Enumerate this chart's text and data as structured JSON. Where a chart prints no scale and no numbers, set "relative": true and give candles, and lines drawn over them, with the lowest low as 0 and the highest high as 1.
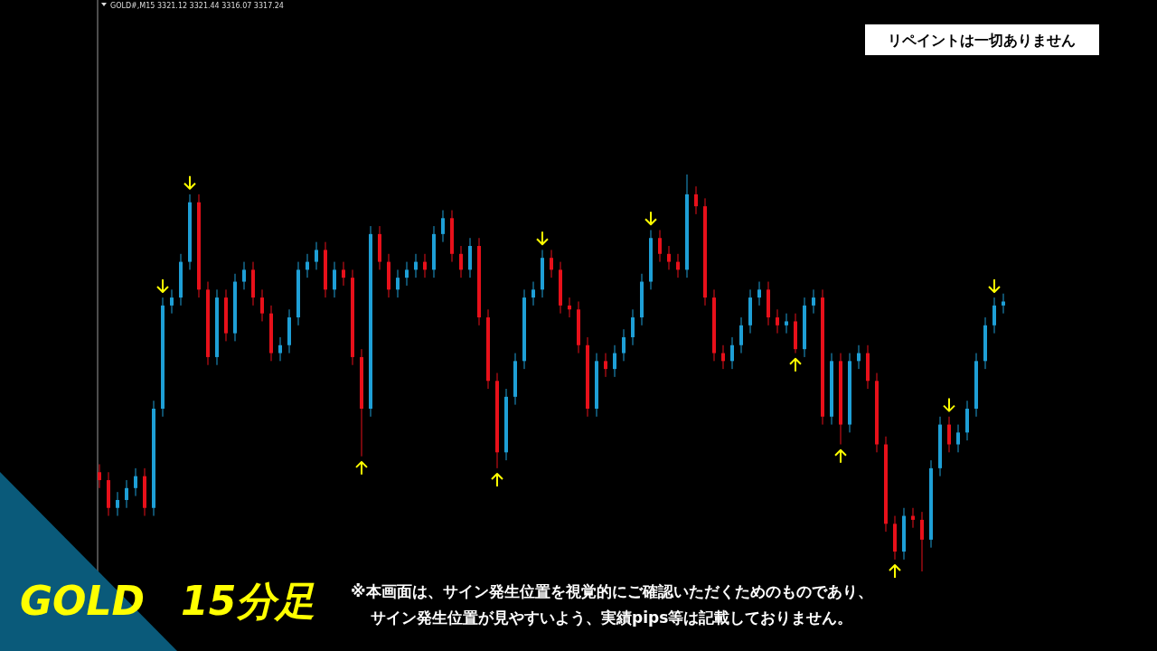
{
  "chart_data": {
    "type": "candlestick",
    "relative": true,
    "title": "GOLD 15分足",
    "annotations": [
      "GOLD#,M15  3321.12 3321.44 3316.07 3317.24",
      "リペイントは一切ありません",
      "※本画面は、サイン発生位置を視覚的にご確認いただくためのものであり、",
      "サイン発生位置が見やすいよう、実績pips等は記載しておりません。"
    ],
    "colors": [
      "#e8101a",
      "#e8101a",
      "#1e9fd6",
      "#1e9fd6",
      "#1e9fd6",
      "#e8101a",
      "#1e9fd6",
      "#1e9fd6",
      "#1e9fd6",
      "#1e9fd6",
      "#1e9fd6",
      "#e8101a",
      "#e8101a",
      "#1e9fd6",
      "#e8101a",
      "#1e9fd6",
      "#1e9fd6",
      "#e8101a",
      "#e8101a",
      "#e8101a",
      "#1e9fd6",
      "#1e9fd6",
      "#1e9fd6",
      "#1e9fd6",
      "#1e9fd6",
      "#e8101a",
      "#1e9fd6",
      "#e8101a",
      "#e8101a",
      "#e8101a",
      "#1e9fd6",
      "#e8101a",
      "#e8101a",
      "#1e9fd6",
      "#1e9fd6",
      "#1e9fd6",
      "#e8101a",
      "#1e9fd6",
      "#1e9fd6",
      "#e8101a",
      "#e8101a",
      "#1e9fd6",
      "#e8101a",
      "#e8101a",
      "#e8101a",
      "#1e9fd6",
      "#1e9fd6",
      "#1e9fd6",
      "#1e9fd6",
      "#1e9fd6",
      "#e8101a",
      "#e8101a",
      "#e8101a",
      "#e8101a",
      "#e8101a",
      "#1e9fd6",
      "#e8101a",
      "#1e9fd6",
      "#1e9fd6",
      "#1e9fd6",
      "#1e9fd6",
      "#1e9fd6",
      "#e8101a",
      "#e8101a",
      "#e8101a",
      "#1e9fd6",
      "#e8101a",
      "#e8101a",
      "#e8101a",
      "#e8101a",
      "#1e9fd6",
      "#1e9fd6",
      "#1e9fd6",
      "#1e9fd6",
      "#e8101a",
      "#e8101a",
      "#1e9fd6",
      "#e8101a",
      "#1e9fd6",
      "#1e9fd6",
      "#e8101a",
      "#1e9fd6",
      "#e8101a",
      "#1e9fd6",
      "#1e9fd6",
      "#e8101a",
      "#e8101a",
      "#e8101a",
      "#e8101a",
      "#1e9fd6",
      "#e8101a",
      "#e8101a",
      "#1e9fd6",
      "#1e9fd6",
      "#e8101a",
      "#1e9fd6",
      "#1e9fd6",
      "#1e9fd6",
      "#1e9fd6",
      "#1e9fd6",
      "#1e9fd6"
    ],
    "categories": [
      null,
      null,
      null,
      null,
      null,
      null,
      null,
      null,
      null,
      null,
      null,
      null,
      null,
      null,
      null,
      null,
      null,
      null,
      null,
      null,
      null,
      null,
      null,
      null,
      null,
      null,
      null,
      null,
      null,
      null,
      null,
      null,
      null,
      null,
      null,
      null,
      null,
      null,
      null,
      null,
      null,
      null,
      null,
      null,
      null,
      null,
      null,
      null,
      null,
      null,
      null,
      null,
      null,
      null,
      null,
      null,
      null,
      null,
      null,
      null,
      null,
      null,
      null,
      null,
      null,
      null,
      null,
      null,
      null,
      null,
      null,
      null,
      null,
      null,
      null,
      null,
      null,
      null,
      null,
      null,
      null,
      null,
      null,
      null,
      null,
      null,
      null,
      null,
      null,
      null,
      null,
      null,
      null,
      null,
      null,
      null,
      null,
      null,
      null,
      null,
      null
    ],
    "ohlc": [
      [
        0.25,
        0.27,
        0.21,
        0.23
      ],
      [
        0.23,
        0.25,
        0.14,
        0.16
      ],
      [
        0.16,
        0.2,
        0.14,
        0.18
      ],
      [
        0.18,
        0.23,
        0.16,
        0.21
      ],
      [
        0.21,
        0.26,
        0.19,
        0.24
      ],
      [
        0.24,
        0.26,
        0.14,
        0.16
      ],
      [
        0.16,
        0.43,
        0.14,
        0.41
      ],
      [
        0.41,
        0.69,
        0.39,
        0.67
      ],
      [
        0.67,
        0.71,
        0.65,
        0.69
      ],
      [
        0.69,
        0.8,
        0.67,
        0.78
      ],
      [
        0.78,
        0.95,
        0.76,
        0.93
      ],
      [
        0.93,
        0.95,
        0.69,
        0.71
      ],
      [
        0.71,
        0.73,
        0.52,
        0.54
      ],
      [
        0.54,
        0.71,
        0.52,
        0.69
      ],
      [
        0.69,
        0.71,
        0.58,
        0.6
      ],
      [
        0.6,
        0.75,
        0.58,
        0.73
      ],
      [
        0.73,
        0.78,
        0.71,
        0.76
      ],
      [
        0.76,
        0.78,
        0.67,
        0.69
      ],
      [
        0.69,
        0.71,
        0.63,
        0.65
      ],
      [
        0.65,
        0.67,
        0.53,
        0.55
      ],
      [
        0.55,
        0.59,
        0.53,
        0.57
      ],
      [
        0.57,
        0.66,
        0.55,
        0.64
      ],
      [
        0.64,
        0.78,
        0.62,
        0.76
      ],
      [
        0.76,
        0.8,
        0.74,
        0.78
      ],
      [
        0.78,
        0.83,
        0.76,
        0.81
      ],
      [
        0.81,
        0.83,
        0.69,
        0.71
      ],
      [
        0.71,
        0.78,
        0.69,
        0.76
      ],
      [
        0.76,
        0.78,
        0.72,
        0.74
      ],
      [
        0.74,
        0.76,
        0.52,
        0.54
      ],
      [
        0.54,
        0.56,
        0.29,
        0.41
      ],
      [
        0.41,
        0.87,
        0.39,
        0.85
      ],
      [
        0.85,
        0.87,
        0.76,
        0.78
      ],
      [
        0.78,
        0.8,
        0.69,
        0.71
      ],
      [
        0.71,
        0.76,
        0.69,
        0.74
      ],
      [
        0.74,
        0.78,
        0.72,
        0.76
      ],
      [
        0.76,
        0.8,
        0.74,
        0.78
      ],
      [
        0.78,
        0.8,
        0.74,
        0.76
      ],
      [
        0.76,
        0.87,
        0.74,
        0.85
      ],
      [
        0.85,
        0.91,
        0.83,
        0.89
      ],
      [
        0.89,
        0.91,
        0.78,
        0.8
      ],
      [
        0.8,
        0.82,
        0.74,
        0.76
      ],
      [
        0.76,
        0.84,
        0.74,
        0.82
      ],
      [
        0.82,
        0.84,
        0.62,
        0.64
      ],
      [
        0.64,
        0.66,
        0.46,
        0.48
      ],
      [
        0.48,
        0.5,
        0.26,
        0.3
      ],
      [
        0.3,
        0.46,
        0.28,
        0.44
      ],
      [
        0.44,
        0.55,
        0.42,
        0.53
      ],
      [
        0.53,
        0.71,
        0.51,
        0.69
      ],
      [
        0.69,
        0.73,
        0.67,
        0.71
      ],
      [
        0.71,
        0.81,
        0.69,
        0.79
      ],
      [
        0.79,
        0.81,
        0.74,
        0.76
      ],
      [
        0.76,
        0.78,
        0.65,
        0.67
      ],
      [
        0.67,
        0.69,
        0.64,
        0.66
      ],
      [
        0.66,
        0.68,
        0.55,
        0.57
      ],
      [
        0.57,
        0.59,
        0.39,
        0.41
      ],
      [
        0.41,
        0.55,
        0.39,
        0.53
      ],
      [
        0.53,
        0.55,
        0.49,
        0.51
      ],
      [
        0.51,
        0.57,
        0.49,
        0.55
      ],
      [
        0.55,
        0.61,
        0.53,
        0.59
      ],
      [
        0.59,
        0.66,
        0.57,
        0.64
      ],
      [
        0.64,
        0.75,
        0.62,
        0.73
      ],
      [
        0.73,
        0.86,
        0.71,
        0.84
      ],
      [
        0.84,
        0.86,
        0.78,
        0.8
      ],
      [
        0.8,
        0.82,
        0.76,
        0.78
      ],
      [
        0.78,
        0.8,
        0.74,
        0.76
      ],
      [
        0.76,
        1.0,
        0.74,
        0.95
      ],
      [
        0.95,
        0.97,
        0.9,
        0.92
      ],
      [
        0.92,
        0.94,
        0.67,
        0.69
      ],
      [
        0.69,
        0.71,
        0.53,
        0.55
      ],
      [
        0.55,
        0.57,
        0.51,
        0.53
      ],
      [
        0.53,
        0.59,
        0.51,
        0.57
      ],
      [
        0.57,
        0.64,
        0.55,
        0.62
      ],
      [
        0.62,
        0.71,
        0.6,
        0.69
      ],
      [
        0.69,
        0.73,
        0.67,
        0.71
      ],
      [
        0.71,
        0.73,
        0.62,
        0.64
      ],
      [
        0.64,
        0.66,
        0.6,
        0.62
      ],
      [
        0.62,
        0.65,
        0.6,
        0.63
      ],
      [
        0.63,
        0.65,
        0.55,
        0.56
      ],
      [
        0.56,
        0.69,
        0.54,
        0.67
      ],
      [
        0.67,
        0.71,
        0.65,
        0.69
      ],
      [
        0.69,
        0.71,
        0.37,
        0.39
      ],
      [
        0.39,
        0.55,
        0.37,
        0.53
      ],
      [
        0.53,
        0.55,
        0.32,
        0.37
      ],
      [
        0.37,
        0.55,
        0.35,
        0.53
      ],
      [
        0.53,
        0.57,
        0.51,
        0.55
      ],
      [
        0.55,
        0.57,
        0.46,
        0.48
      ],
      [
        0.48,
        0.5,
        0.3,
        0.32
      ],
      [
        0.32,
        0.34,
        0.1,
        0.12
      ],
      [
        0.12,
        0.14,
        0.03,
        0.05
      ],
      [
        0.05,
        0.16,
        0.03,
        0.14
      ],
      [
        0.14,
        0.16,
        0.11,
        0.13
      ],
      [
        0.13,
        0.15,
        0.0,
        0.08
      ],
      [
        0.08,
        0.28,
        0.06,
        0.26
      ],
      [
        0.26,
        0.39,
        0.24,
        0.37
      ],
      [
        0.37,
        0.39,
        0.3,
        0.32
      ],
      [
        0.32,
        0.37,
        0.3,
        0.35
      ],
      [
        0.35,
        0.43,
        0.33,
        0.41
      ],
      [
        0.41,
        0.55,
        0.39,
        0.53
      ],
      [
        0.53,
        0.64,
        0.51,
        0.62
      ],
      [
        0.62,
        0.69,
        0.6,
        0.67
      ],
      [
        0.67,
        0.7,
        0.65,
        0.68
      ]
    ],
    "series": [
      {
        "type": "scatter",
        "color": "#ffff00",
        "values": [
          null,
          null,
          null,
          null,
          null,
          null,
          null,
          0.72,
          null,
          null,
          0.98,
          null,
          null,
          null,
          null,
          null,
          null,
          null,
          null,
          null,
          null,
          null,
          null,
          null,
          null,
          null,
          null,
          null,
          null,
          null,
          null,
          null,
          null,
          null,
          null,
          null,
          null,
          null,
          null,
          null,
          null,
          null,
          null,
          null,
          null,
          null,
          null,
          null,
          null,
          0.84,
          null,
          null,
          null,
          null,
          null,
          null,
          null,
          null,
          null,
          null,
          null,
          0.89,
          null,
          null,
          null,
          null,
          null,
          null,
          null,
          null,
          null,
          null,
          null,
          null,
          null,
          null,
          null,
          null,
          null,
          null,
          null,
          null,
          null,
          null,
          null,
          null,
          null,
          null,
          null,
          null,
          null,
          null,
          null,
          null,
          0.42,
          null,
          null,
          null,
          null,
          0.72,
          null
        ]
      },
      {
        "type": "scatter",
        "color": "#ffff00",
        "values": [
          null,
          null,
          null,
          null,
          null,
          null,
          null,
          null,
          null,
          null,
          null,
          null,
          null,
          null,
          null,
          null,
          null,
          null,
          null,
          null,
          null,
          null,
          null,
          null,
          null,
          null,
          null,
          null,
          null,
          0.26,
          null,
          null,
          null,
          null,
          null,
          null,
          null,
          null,
          null,
          null,
          null,
          null,
          null,
          null,
          0.23,
          null,
          null,
          null,
          null,
          null,
          null,
          null,
          null,
          null,
          null,
          null,
          null,
          null,
          null,
          null,
          null,
          null,
          null,
          null,
          null,
          null,
          null,
          null,
          null,
          null,
          null,
          null,
          null,
          null,
          null,
          null,
          null,
          0.52,
          null,
          null,
          null,
          null,
          0.29,
          null,
          null,
          null,
          null,
          null,
          0.0,
          null,
          null,
          null,
          null,
          null,
          null,
          null,
          null,
          null,
          null,
          null,
          null
        ]
      }
    ]
  }
}
